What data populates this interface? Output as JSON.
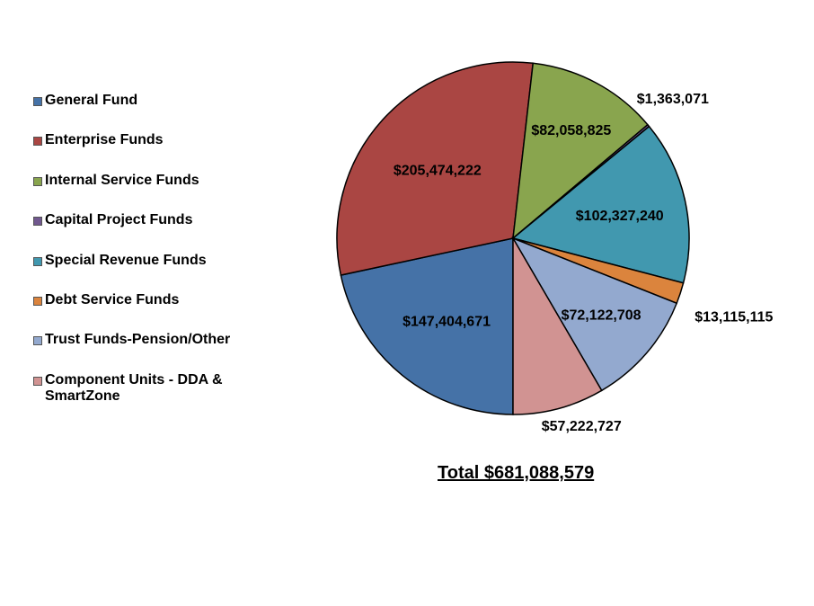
{
  "chart_data": {
    "type": "pie",
    "title": "",
    "legend_position": "left",
    "slices": [
      {
        "name": "General Fund",
        "value": 147404671,
        "label": "$147,404,671",
        "color": "#4572A7"
      },
      {
        "name": "Enterprise Funds",
        "value": 205474222,
        "label": "$205,474,222",
        "color": "#AA4643"
      },
      {
        "name": "Internal Service Funds",
        "value": 82058825,
        "label": "$82,058,825",
        "color": "#89A54E"
      },
      {
        "name": "Capital Project Funds",
        "value": 1363071,
        "label": "$1,363,071",
        "color": "#71588F"
      },
      {
        "name": "Special Revenue Funds",
        "value": 102327240,
        "label": "$102,327,240",
        "color": "#4198AF"
      },
      {
        "name": "Debt Service Funds",
        "value": 13115115,
        "label": "$13,115,115",
        "color": "#DB843D"
      },
      {
        "name": "Trust Funds-Pension/Other",
        "value": 72122708,
        "label": "$72,122,708",
        "color": "#93A9CF"
      },
      {
        "name": "Component Units - DDA & SmartZone",
        "value": 57222727,
        "label": "$57,222,727",
        "color": "#D19392"
      }
    ]
  },
  "total_label": "Total $681,088,579"
}
